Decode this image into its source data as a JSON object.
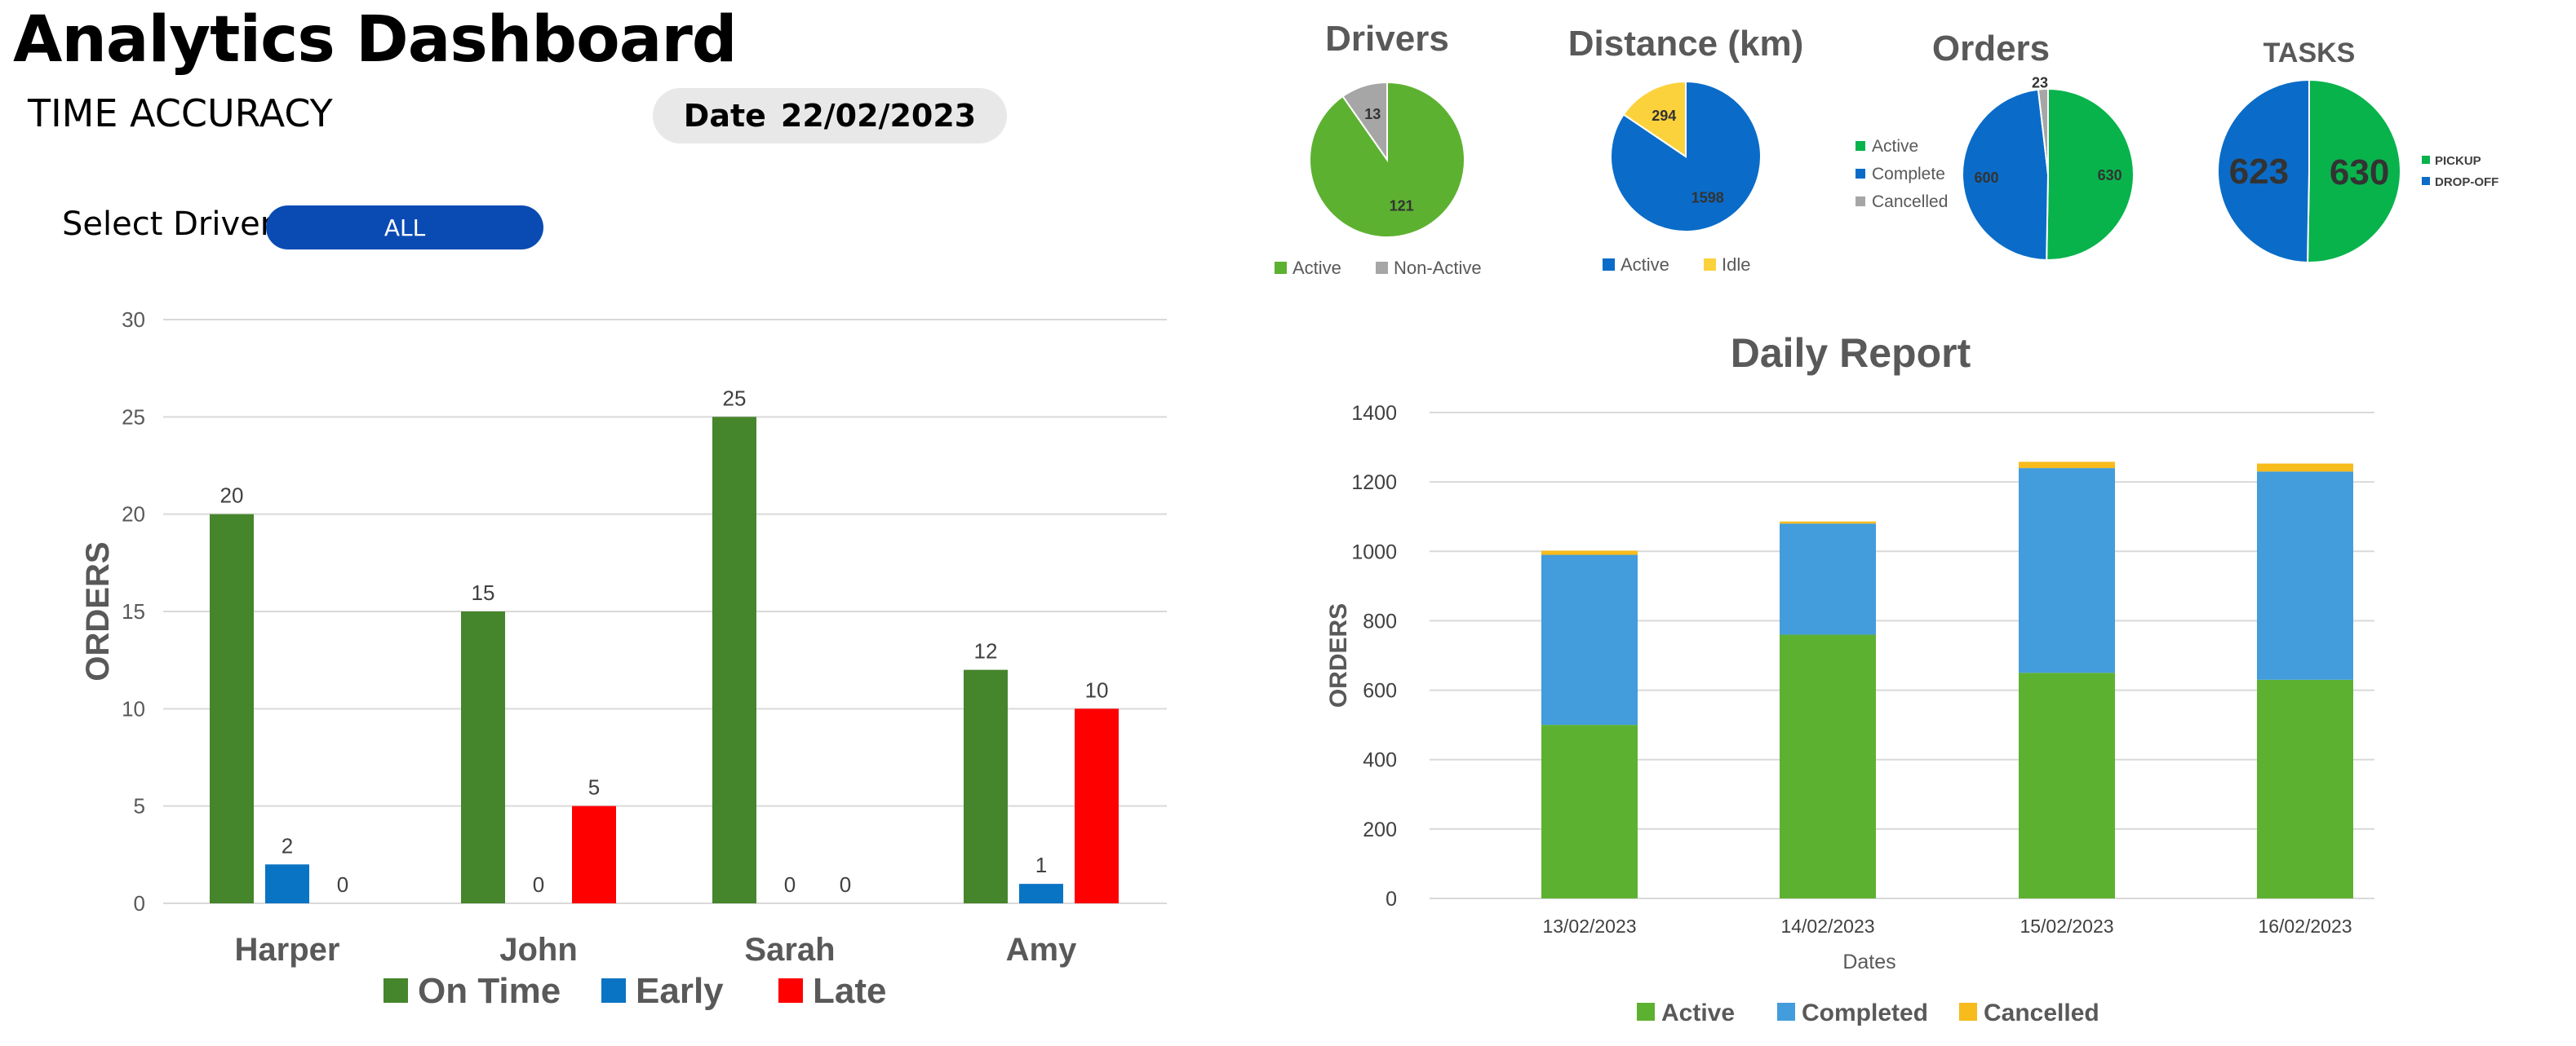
{
  "header": {
    "title": "Analytics Dashboard",
    "subtitle": "TIME ACCURACY",
    "date_label": "Date",
    "date_value": "22/02/2023"
  },
  "filter": {
    "label": "Select Driver",
    "value": "ALL"
  },
  "colors": {
    "ontime": "#45852b",
    "early": "#0a74c4",
    "late": "#ff0000",
    "drivers_active": "#5db131",
    "drivers_nonactive": "#a6a6a6",
    "distance_active": "#0a6cc8",
    "distance_idle": "#fcd23c",
    "orders_active": "#08b34c",
    "orders_complete": "#0a6cc8",
    "orders_cancelled": "#a6a6a6",
    "daily_active": "#5db131",
    "daily_completed": "#439cdb",
    "daily_cancelled": "#f7bb1c"
  },
  "time_accuracy_chart": {
    "chart_data": {
      "type": "bar",
      "categories": [
        "Harper",
        "John",
        "Sarah",
        "Amy"
      ],
      "series": [
        {
          "name": "On Time",
          "values": [
            20,
            15,
            25,
            12
          ]
        },
        {
          "name": "Early",
          "values": [
            2,
            0,
            0,
            1
          ]
        },
        {
          "name": "Late",
          "values": [
            0,
            5,
            0,
            10
          ]
        }
      ],
      "ylabel": "ORDERS",
      "ylim": [
        0,
        30
      ],
      "yticks": [
        0,
        5,
        10,
        15,
        20,
        25,
        30
      ],
      "grid": true,
      "legend": "bottom"
    }
  },
  "pies": [
    {
      "chart_data": {
        "type": "pie",
        "title": "Drivers",
        "labels": [
          "Active",
          "Non-Active"
        ],
        "values": [
          121,
          13
        ],
        "legend": "bottom"
      }
    },
    {
      "chart_data": {
        "type": "pie",
        "title": "Distance (km)",
        "labels": [
          "Active",
          "Idle"
        ],
        "values": [
          1598,
          294
        ],
        "legend": "bottom"
      }
    },
    {
      "chart_data": {
        "type": "pie",
        "title": "Orders",
        "labels": [
          "Active",
          "Complete",
          "Cancelled"
        ],
        "values": [
          630,
          600,
          23
        ],
        "legend": "left"
      }
    },
    {
      "chart_data": {
        "type": "pie",
        "title": "TASKS",
        "labels": [
          "PICKUP",
          "DROP-OFF"
        ],
        "values": [
          630,
          623
        ],
        "legend": "right"
      }
    }
  ],
  "daily_report_chart": {
    "chart_data": {
      "type": "bar",
      "stacked": true,
      "title": "Daily Report",
      "categories": [
        "13/02/2023",
        "14/02/2023",
        "15/02/2023",
        "16/02/2023"
      ],
      "series": [
        {
          "name": "Active",
          "values": [
            500,
            760,
            650,
            630
          ]
        },
        {
          "name": "Completed",
          "values": [
            490,
            320,
            590,
            600
          ]
        },
        {
          "name": "Cancelled",
          "values": [
            12,
            6,
            18,
            23
          ]
        }
      ],
      "xlabel": "Dates",
      "ylabel": "ORDERS",
      "ylim": [
        0,
        1400
      ],
      "yticks": [
        0,
        200,
        400,
        600,
        800,
        1000,
        1200,
        1400
      ],
      "grid": true,
      "legend": "bottom"
    }
  }
}
